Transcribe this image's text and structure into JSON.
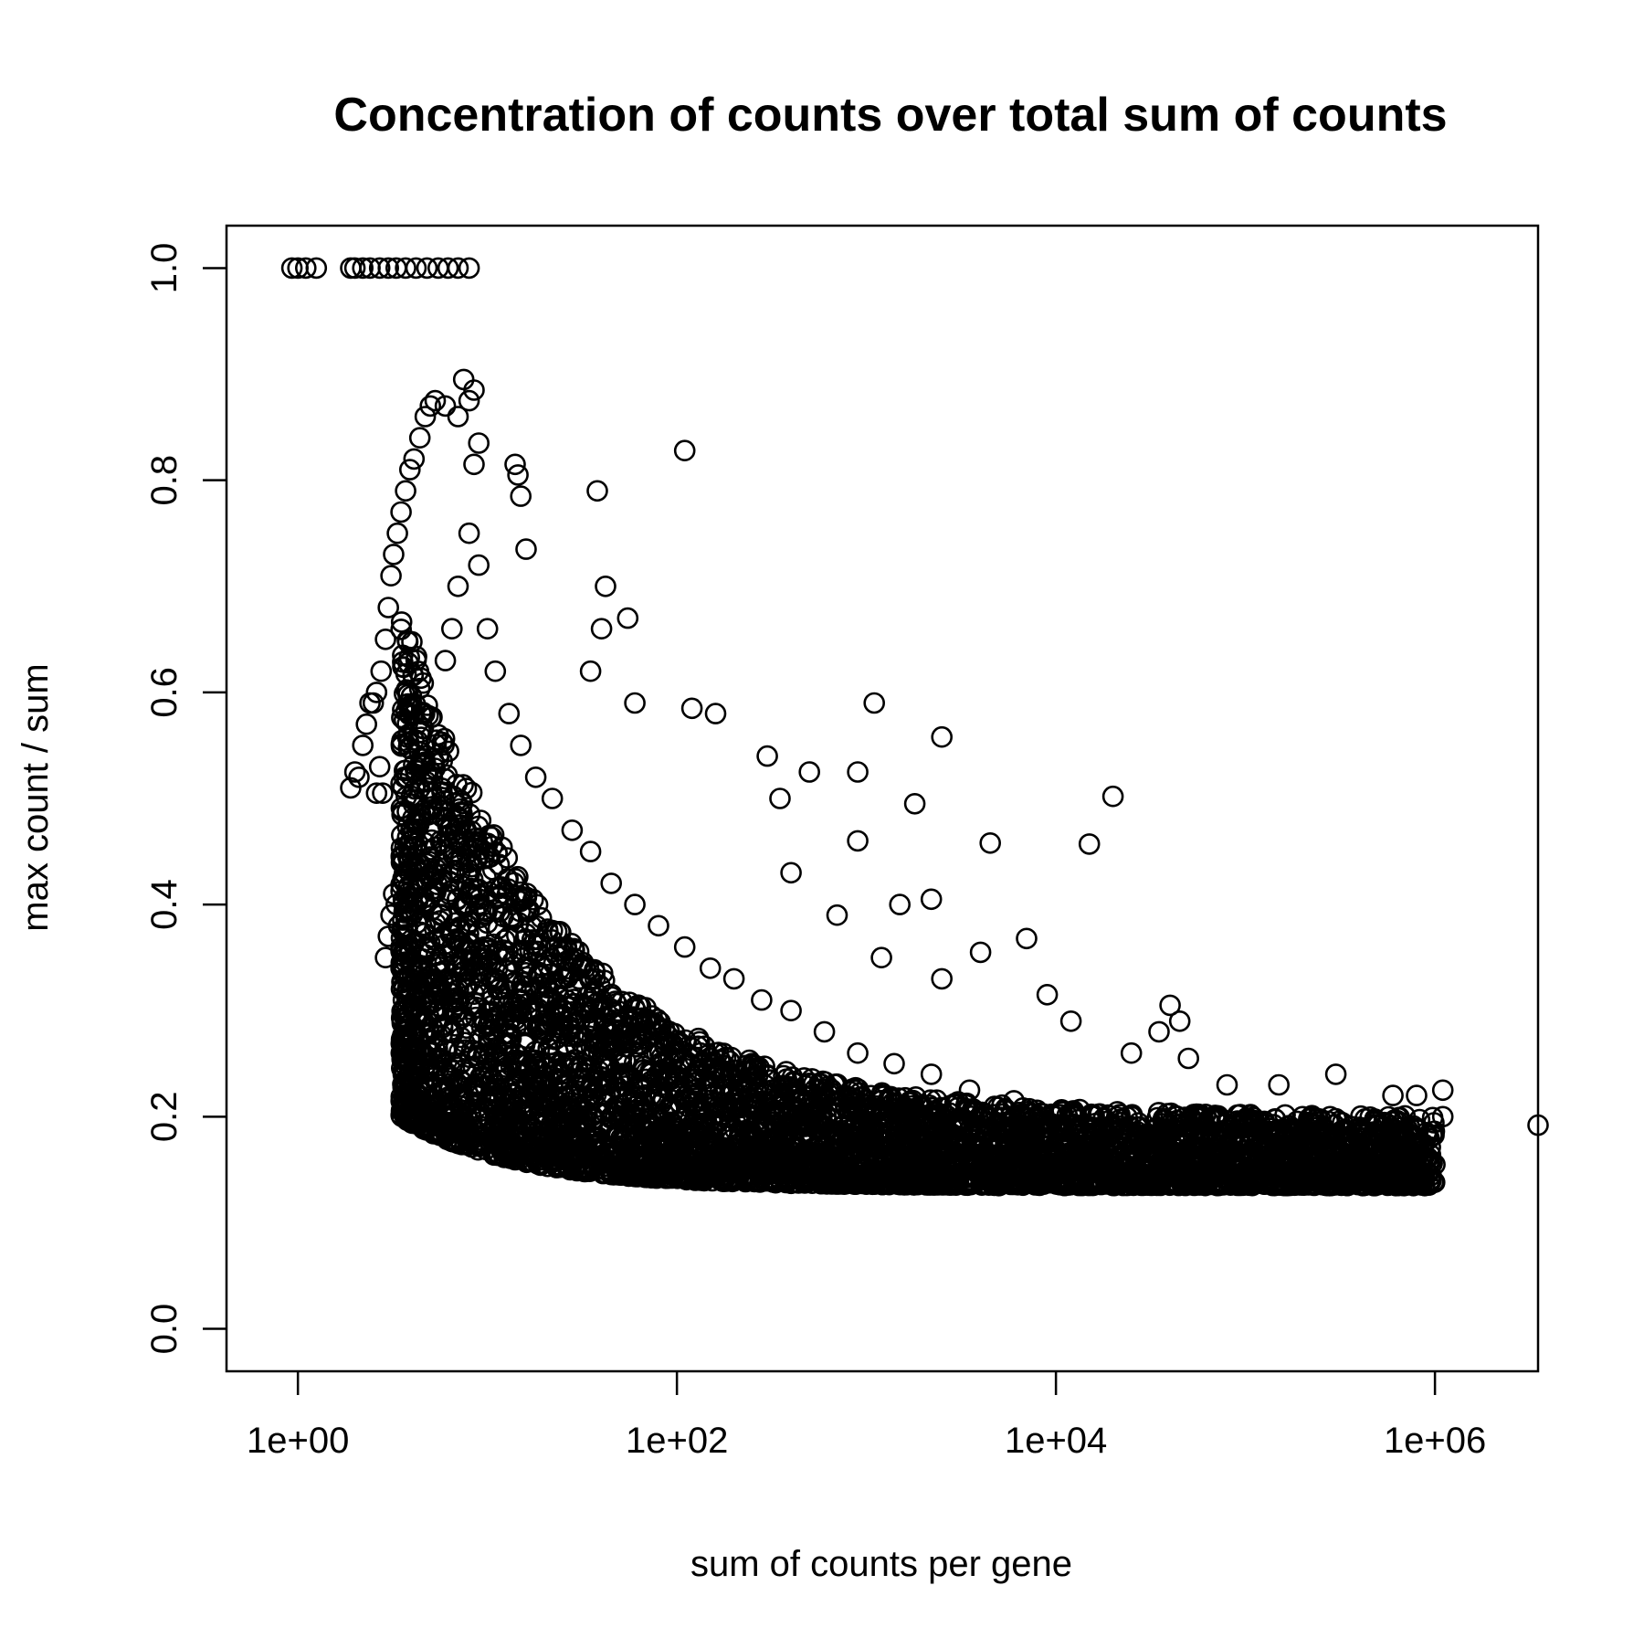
{
  "chart_data": {
    "type": "scatter",
    "title": "Concentration of counts over total sum of counts",
    "xlabel": "sum of counts per gene",
    "ylabel": "max count / sum",
    "x_scale": "log10",
    "xlim": [
      0.42,
      3500000
    ],
    "ylim": [
      -0.04,
      1.04
    ],
    "x_ticks": [
      1,
      100,
      10000,
      1000000
    ],
    "x_tick_labels": [
      "1e+00",
      "1e+02",
      "1e+04",
      "1e+06"
    ],
    "y_ticks": [
      0.0,
      0.2,
      0.4,
      0.6,
      0.8,
      1.0
    ],
    "y_tick_labels": [
      "0.0",
      "0.2",
      "0.4",
      "0.6",
      "0.8",
      "1.0"
    ],
    "grid": false,
    "marker": "open-circle",
    "points": [
      [
        0.93,
        1.0
      ],
      [
        1.0,
        1.0
      ],
      [
        1.1,
        1.0
      ],
      [
        1.25,
        1.0
      ],
      [
        1.9,
        1.0
      ],
      [
        2.0,
        1.0
      ],
      [
        2.2,
        1.0
      ],
      [
        2.4,
        1.0
      ],
      [
        2.7,
        1.0
      ],
      [
        3.0,
        1.0
      ],
      [
        3.3,
        1.0
      ],
      [
        3.7,
        1.0
      ],
      [
        4.2,
        1.0
      ],
      [
        4.8,
        1.0
      ],
      [
        5.5,
        1.0
      ],
      [
        6.2,
        1.0
      ],
      [
        7.0,
        1.0
      ],
      [
        8.0,
        1.0
      ],
      [
        1.9,
        0.51
      ],
      [
        2.0,
        0.525
      ],
      [
        2.1,
        0.52
      ],
      [
        2.2,
        0.55
      ],
      [
        2.3,
        0.57
      ],
      [
        2.4,
        0.59
      ],
      [
        2.5,
        0.59
      ],
      [
        2.6,
        0.505
      ],
      [
        2.7,
        0.53
      ],
      [
        2.8,
        0.505
      ],
      [
        2.6,
        0.6
      ],
      [
        2.75,
        0.62
      ],
      [
        2.9,
        0.65
      ],
      [
        3.0,
        0.68
      ],
      [
        3.1,
        0.71
      ],
      [
        3.2,
        0.73
      ],
      [
        3.35,
        0.75
      ],
      [
        3.5,
        0.77
      ],
      [
        3.7,
        0.79
      ],
      [
        3.9,
        0.81
      ],
      [
        4.1,
        0.82
      ],
      [
        4.4,
        0.84
      ],
      [
        4.7,
        0.86
      ],
      [
        5.0,
        0.87
      ],
      [
        5.3,
        0.875
      ],
      [
        6.0,
        0.87
      ],
      [
        2.9,
        0.35
      ],
      [
        3.0,
        0.37
      ],
      [
        3.1,
        0.39
      ],
      [
        3.2,
        0.41
      ],
      [
        3.3,
        0.4
      ],
      [
        3.4,
        0.38
      ],
      [
        3.5,
        0.36
      ],
      [
        3.6,
        0.34
      ],
      [
        3.6,
        0.31
      ],
      [
        3.8,
        0.29
      ],
      [
        4.0,
        0.27
      ],
      [
        4.3,
        0.25
      ],
      [
        4.6,
        0.23
      ],
      [
        5.0,
        0.21
      ],
      [
        5.5,
        0.195
      ],
      [
        6.0,
        0.185
      ],
      [
        7.5,
        0.895
      ],
      [
        8.5,
        0.885
      ],
      [
        8.0,
        0.875
      ],
      [
        7.0,
        0.86
      ],
      [
        9.0,
        0.835
      ],
      [
        8.5,
        0.815
      ],
      [
        14,
        0.815
      ],
      [
        14.5,
        0.805
      ],
      [
        15,
        0.785
      ],
      [
        16,
        0.735
      ],
      [
        110,
        0.828
      ],
      [
        38,
        0.79
      ],
      [
        42,
        0.7
      ],
      [
        55,
        0.67
      ],
      [
        35,
        0.62
      ],
      [
        40,
        0.66
      ],
      [
        60,
        0.59
      ],
      [
        120,
        0.585
      ],
      [
        160,
        0.58
      ],
      [
        1100,
        0.59
      ],
      [
        2500,
        0.558
      ],
      [
        300,
        0.54
      ],
      [
        500,
        0.525
      ],
      [
        350,
        0.5
      ],
      [
        900,
        0.525
      ],
      [
        1800,
        0.495
      ],
      [
        900,
        0.46
      ],
      [
        1500,
        0.4
      ],
      [
        2200,
        0.405
      ],
      [
        4500,
        0.458
      ],
      [
        15000,
        0.457
      ],
      [
        20000,
        0.502
      ],
      [
        400,
        0.43
      ],
      [
        700,
        0.39
      ],
      [
        1200,
        0.35
      ],
      [
        2500,
        0.33
      ],
      [
        4000,
        0.355
      ],
      [
        7000,
        0.368
      ],
      [
        9000,
        0.315
      ],
      [
        12000,
        0.29
      ],
      [
        25000,
        0.26
      ],
      [
        35000,
        0.28
      ],
      [
        40000,
        0.305
      ],
      [
        45000,
        0.29
      ],
      [
        50000,
        0.255
      ],
      [
        80000,
        0.23
      ],
      [
        150000,
        0.23
      ],
      [
        300000,
        0.24
      ],
      [
        600000,
        0.22
      ],
      [
        800000,
        0.22
      ],
      [
        1100000,
        0.225
      ],
      [
        1100000,
        0.2
      ],
      [
        1000000,
        0.155
      ],
      [
        900000,
        0.185
      ],
      [
        750000,
        0.14
      ],
      [
        3500000,
        0.192
      ],
      [
        500000,
        0.17
      ],
      [
        400000,
        0.19
      ],
      [
        250000,
        0.16
      ],
      [
        200000,
        0.2
      ],
      [
        120000,
        0.15
      ],
      [
        60000,
        0.17
      ],
      [
        30000,
        0.14
      ],
      [
        10000,
        0.14
      ],
      [
        5000,
        0.135
      ],
      [
        2000,
        0.14
      ],
      [
        1000,
        0.145
      ],
      [
        400,
        0.15
      ],
      [
        150,
        0.16
      ],
      [
        60,
        0.17
      ],
      [
        20,
        0.18
      ],
      [
        12,
        0.17
      ],
      [
        9,
        0.2
      ],
      [
        7,
        0.22
      ],
      [
        4.5,
        0.42
      ],
      [
        5.0,
        0.5
      ],
      [
        5.5,
        0.56
      ],
      [
        6.0,
        0.63
      ],
      [
        6.5,
        0.66
      ],
      [
        7.0,
        0.7
      ],
      [
        8.0,
        0.75
      ],
      [
        9.0,
        0.72
      ],
      [
        10,
        0.66
      ],
      [
        11,
        0.62
      ],
      [
        13,
        0.58
      ],
      [
        15,
        0.55
      ],
      [
        18,
        0.52
      ],
      [
        22,
        0.5
      ],
      [
        28,
        0.47
      ],
      [
        35,
        0.45
      ],
      [
        45,
        0.42
      ],
      [
        60,
        0.4
      ],
      [
        80,
        0.38
      ],
      [
        110,
        0.36
      ],
      [
        150,
        0.34
      ],
      [
        200,
        0.33
      ],
      [
        280,
        0.31
      ],
      [
        400,
        0.3
      ],
      [
        600,
        0.28
      ],
      [
        900,
        0.26
      ],
      [
        1400,
        0.25
      ],
      [
        2200,
        0.24
      ],
      [
        3500,
        0.225
      ],
      [
        6000,
        0.215
      ],
      [
        10000,
        0.2
      ],
      [
        20000,
        0.19
      ],
      [
        40000,
        0.185
      ],
      [
        80000,
        0.18
      ],
      [
        160000,
        0.17
      ],
      [
        320000,
        0.165
      ]
    ],
    "density_band": {
      "note": "dense overlapping cloud of points",
      "x_range": [
        3.5,
        1000000
      ],
      "y_upper_start": 0.68,
      "y_lower_start": 0.2,
      "y_upper_end": 0.2,
      "y_lower_end": 0.135
    }
  }
}
